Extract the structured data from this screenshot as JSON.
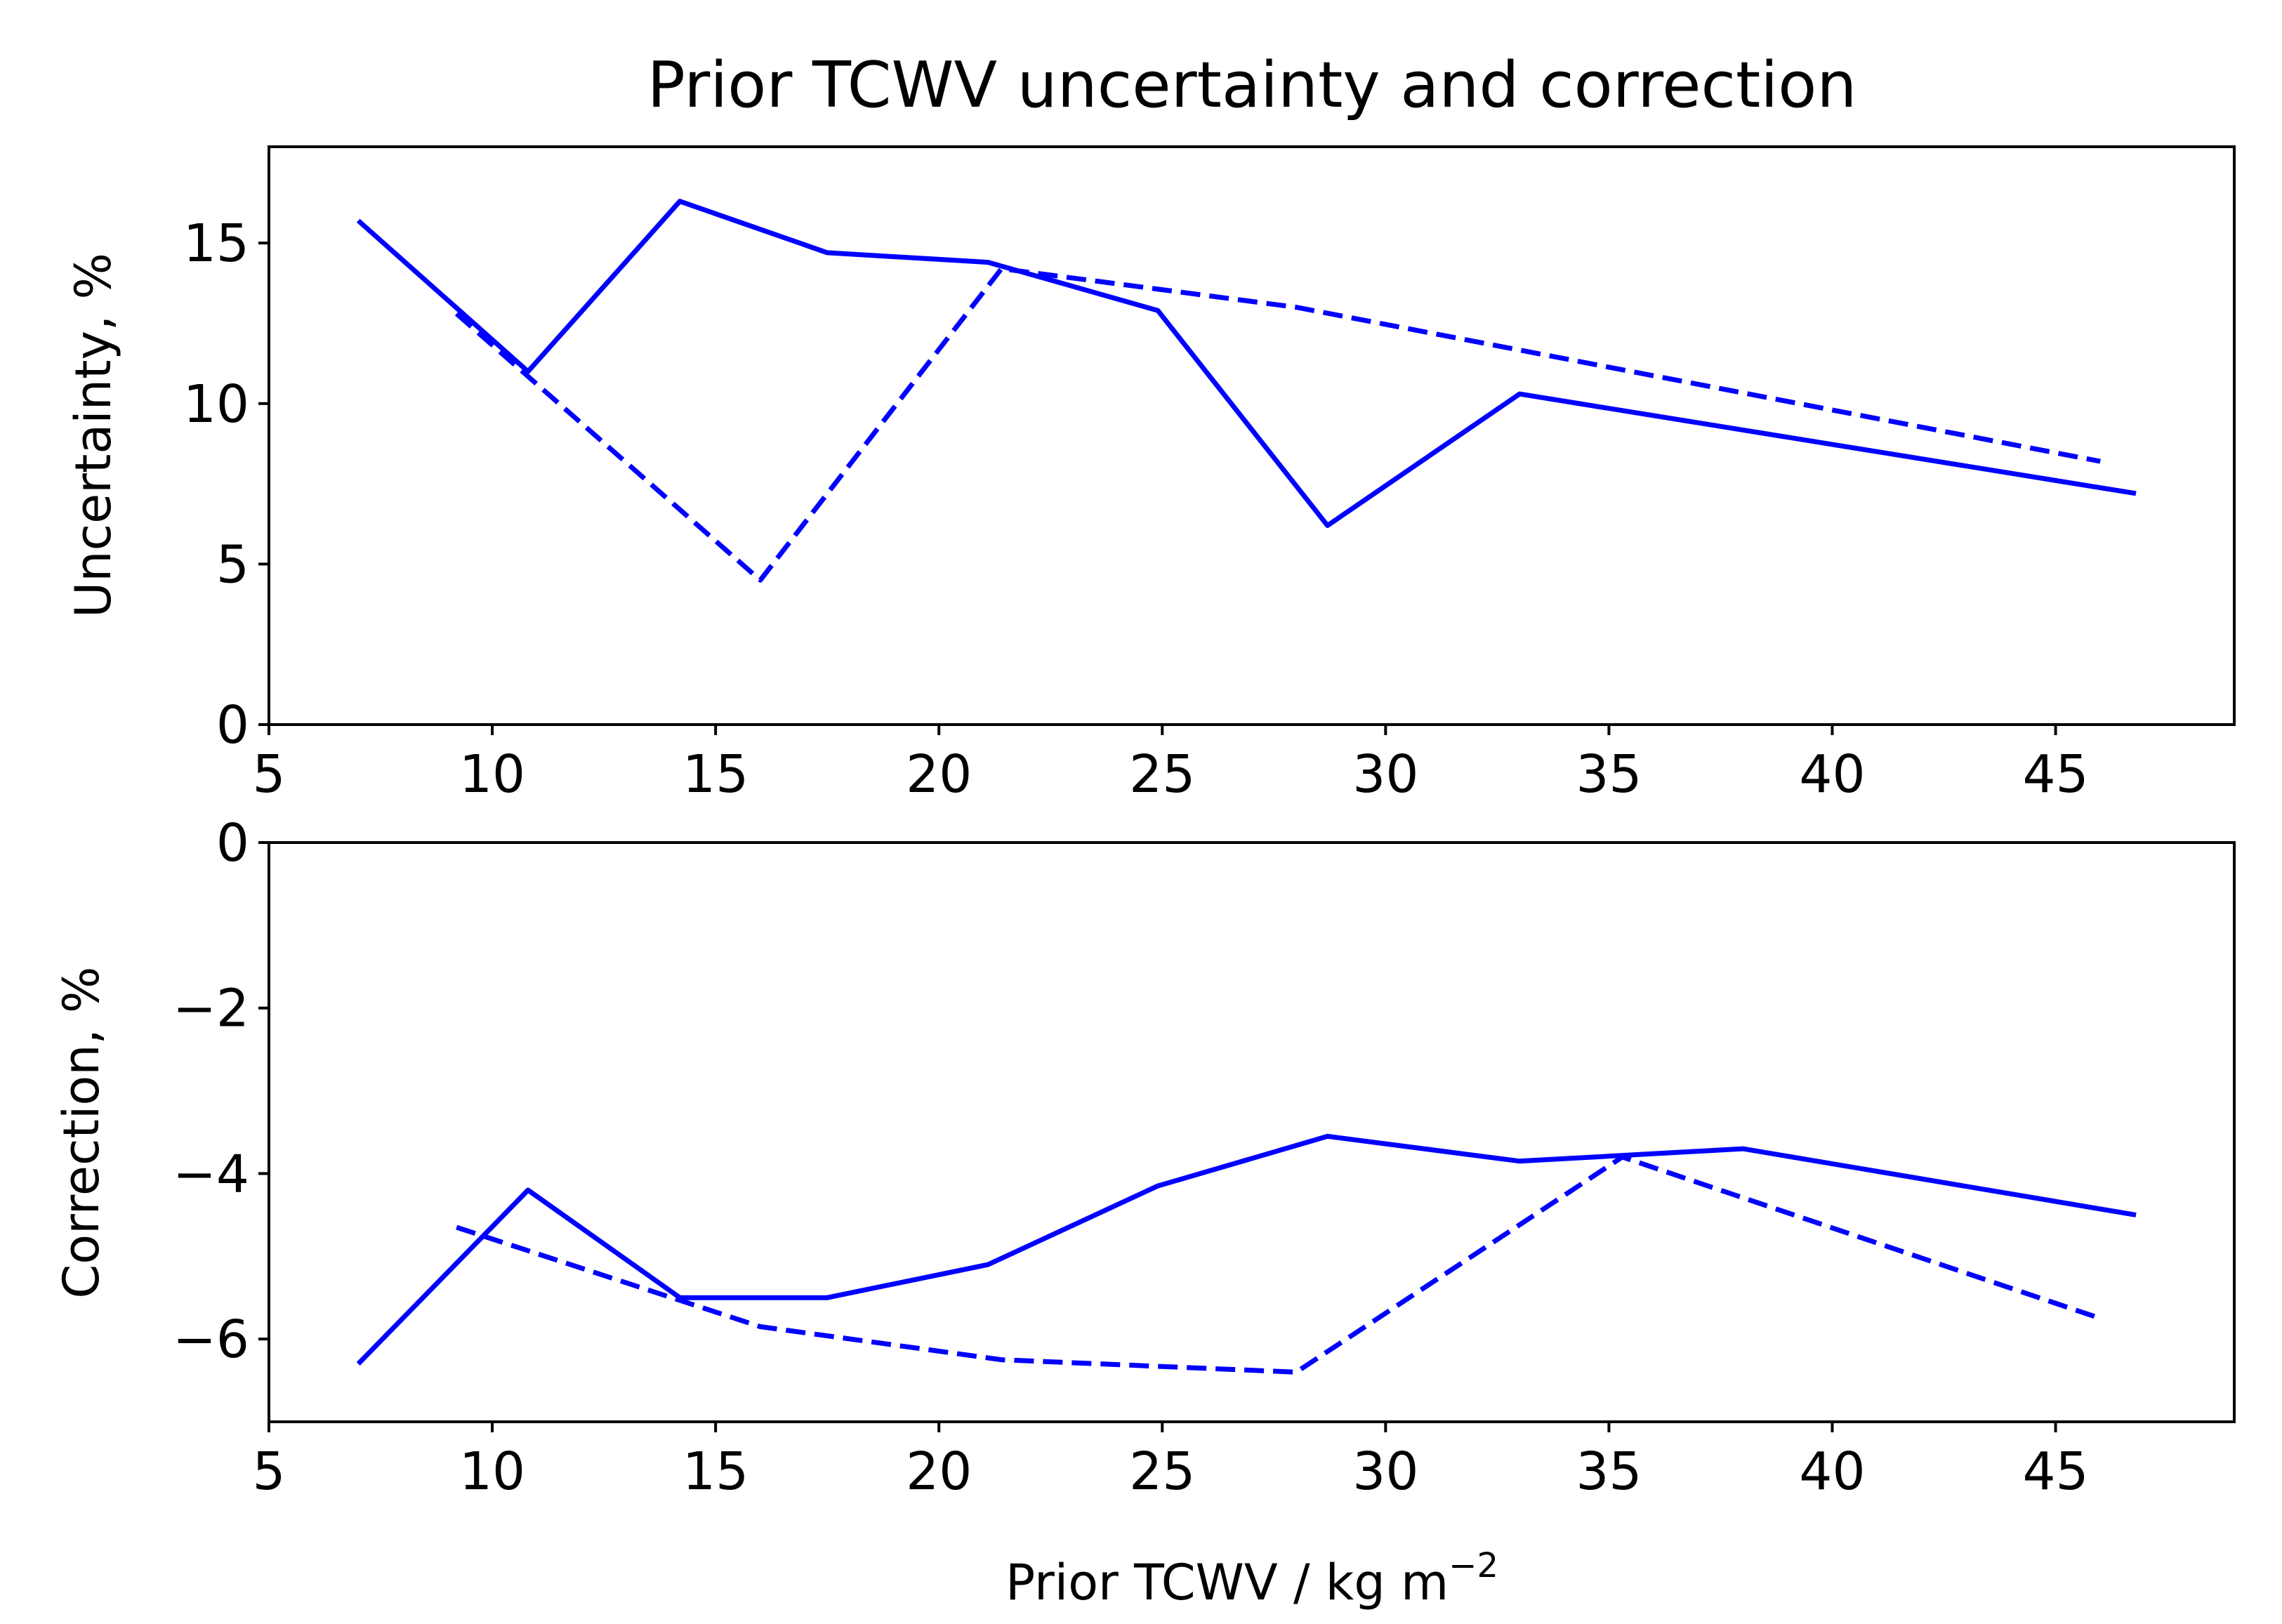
{
  "title": "Prior TCWV uncertainty and correction",
  "colors": {
    "series": "#0000ff",
    "axes": "#000000",
    "background": "#ffffff"
  },
  "chart_data": [
    {
      "type": "line",
      "panel": "top",
      "xlabel": "",
      "ylabel": "Uncertainty, %",
      "xlim": [
        5,
        49
      ],
      "ylim": [
        0,
        18
      ],
      "xticks": [
        5,
        10,
        15,
        20,
        25,
        30,
        35,
        40,
        45
      ],
      "xtick_labels": [
        "5",
        "10",
        "15",
        "20",
        "25",
        "30",
        "35",
        "40",
        "45"
      ],
      "yticks": [
        0,
        5,
        10,
        15
      ],
      "ytick_labels": [
        "0",
        "5",
        "10",
        "15"
      ],
      "series": [
        {
          "name": "solid",
          "style": "solid",
          "x": [
            7.0,
            10.8,
            14.2,
            17.5,
            21.1,
            24.9,
            28.7,
            33.0,
            46.8
          ],
          "y": [
            15.7,
            11.0,
            16.3,
            14.7,
            14.4,
            12.9,
            6.2,
            10.3,
            7.2
          ]
        },
        {
          "name": "dashed",
          "style": "dashed",
          "x": [
            9.2,
            16.0,
            21.4,
            28.0,
            46.0
          ],
          "y": [
            12.8,
            4.5,
            14.2,
            13.0,
            8.2
          ]
        }
      ]
    },
    {
      "type": "line",
      "panel": "bottom",
      "xlabel": "Prior TCWV / kg m",
      "xlabel_superscript": "−2",
      "ylabel": "Correction, %",
      "xlim": [
        5,
        49
      ],
      "ylim": [
        -7,
        0
      ],
      "xticks": [
        5,
        10,
        15,
        20,
        25,
        30,
        35,
        40,
        45
      ],
      "xtick_labels": [
        "5",
        "10",
        "15",
        "20",
        "25",
        "30",
        "35",
        "40",
        "45"
      ],
      "yticks": [
        0,
        -2,
        -4,
        -6
      ],
      "ytick_labels": [
        "0",
        "−2",
        "−4",
        "−6"
      ],
      "series": [
        {
          "name": "solid",
          "style": "solid",
          "x": [
            7.0,
            10.8,
            14.2,
            17.5,
            21.1,
            24.9,
            28.7,
            33.0,
            38.0,
            46.8
          ],
          "y": [
            -6.3,
            -4.2,
            -5.5,
            -5.5,
            -5.1,
            -4.15,
            -3.55,
            -3.85,
            -3.7,
            -4.5
          ]
        },
        {
          "name": "dashed",
          "style": "dashed",
          "x": [
            9.2,
            16.0,
            21.4,
            28.0,
            35.3,
            46.0
          ],
          "y": [
            -4.65,
            -5.85,
            -6.25,
            -6.4,
            -3.8,
            -5.75
          ]
        }
      ]
    }
  ]
}
